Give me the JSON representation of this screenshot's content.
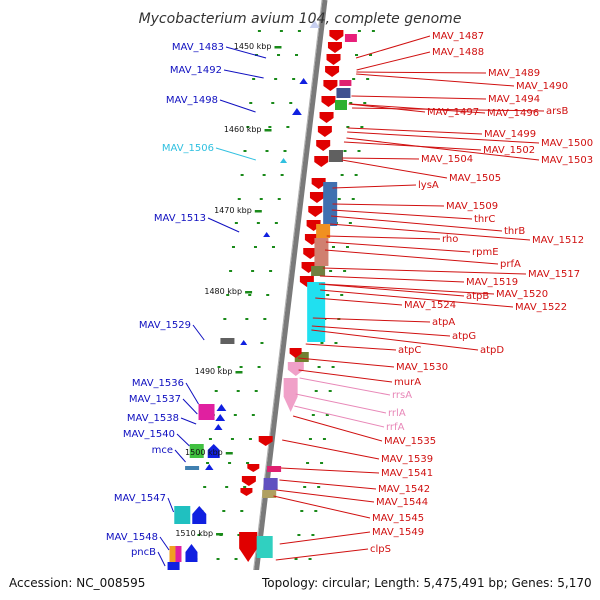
{
  "title": "Mycobacterium avium 104, complete genome",
  "footer": {
    "accession": "Accession: NC_008595",
    "summary": "Topology: circular; Length: 5,475,491 bp; Genes: 5,170"
  },
  "colors": {
    "plus_label": "#d01010",
    "minus_label": "#1010c0",
    "rna_label": "#e888b8",
    "cyan_label": "#30c0e0",
    "backbone": "#808080",
    "tick": "#1a8a1a"
  },
  "kbp_ticks": [
    "1450 kbp",
    "1460 kbp",
    "1470 kbp",
    "1480 kbp",
    "1490 kbp",
    "1500 kbp",
    "1510 kbp"
  ],
  "left_labels": [
    {
      "text": "MAV_1483",
      "kind": "minus"
    },
    {
      "text": "MAV_1492",
      "kind": "minus"
    },
    {
      "text": "MAV_1498",
      "kind": "minus"
    },
    {
      "text": "MAV_1506",
      "kind": "cyan"
    },
    {
      "text": "MAV_1513",
      "kind": "minus"
    },
    {
      "text": "MAV_1529",
      "kind": "minus"
    },
    {
      "text": "MAV_1536",
      "kind": "minus"
    },
    {
      "text": "MAV_1537",
      "kind": "minus"
    },
    {
      "text": "MAV_1538",
      "kind": "minus"
    },
    {
      "text": "MAV_1540",
      "kind": "minus"
    },
    {
      "text": "mce",
      "kind": "minus"
    },
    {
      "text": "MAV_1547",
      "kind": "minus"
    },
    {
      "text": "MAV_1548",
      "kind": "minus"
    },
    {
      "text": "pncB",
      "kind": "minus"
    }
  ],
  "right_labels": [
    {
      "text": "MAV_1487",
      "kind": "plus"
    },
    {
      "text": "MAV_1488",
      "kind": "plus"
    },
    {
      "text": "MAV_1489",
      "kind": "plus"
    },
    {
      "text": "MAV_1490",
      "kind": "plus"
    },
    {
      "text": "MAV_1494",
      "kind": "plus"
    },
    {
      "text": "MAV_1497",
      "kind": "plus"
    },
    {
      "text": "MAV_1496",
      "kind": "plus"
    },
    {
      "text": "arsB",
      "kind": "plus"
    },
    {
      "text": "MAV_1499",
      "kind": "plus"
    },
    {
      "text": "MAV_1500",
      "kind": "plus"
    },
    {
      "text": "MAV_1502",
      "kind": "plus"
    },
    {
      "text": "MAV_1503",
      "kind": "plus"
    },
    {
      "text": "MAV_1504",
      "kind": "plus"
    },
    {
      "text": "MAV_1505",
      "kind": "plus"
    },
    {
      "text": "lysA",
      "kind": "plus"
    },
    {
      "text": "MAV_1509",
      "kind": "plus"
    },
    {
      "text": "thrC",
      "kind": "plus"
    },
    {
      "text": "thrB",
      "kind": "plus"
    },
    {
      "text": "rho",
      "kind": "plus"
    },
    {
      "text": "MAV_1512",
      "kind": "plus"
    },
    {
      "text": "rpmE",
      "kind": "plus"
    },
    {
      "text": "prfA",
      "kind": "plus"
    },
    {
      "text": "MAV_1517",
      "kind": "plus"
    },
    {
      "text": "MAV_1519",
      "kind": "plus"
    },
    {
      "text": "atpB",
      "kind": "plus"
    },
    {
      "text": "MAV_1520",
      "kind": "plus"
    },
    {
      "text": "MAV_1524",
      "kind": "plus"
    },
    {
      "text": "MAV_1522",
      "kind": "plus"
    },
    {
      "text": "atpA",
      "kind": "plus"
    },
    {
      "text": "atpG",
      "kind": "plus"
    },
    {
      "text": "atpC",
      "kind": "plus"
    },
    {
      "text": "atpD",
      "kind": "plus"
    },
    {
      "text": "MAV_1530",
      "kind": "plus"
    },
    {
      "text": "murA",
      "kind": "plus"
    },
    {
      "text": "rrsA",
      "kind": "rna"
    },
    {
      "text": "rrlA",
      "kind": "rna"
    },
    {
      "text": "rrfA",
      "kind": "rna"
    },
    {
      "text": "MAV_1535",
      "kind": "plus"
    },
    {
      "text": "MAV_1539",
      "kind": "plus"
    },
    {
      "text": "MAV_1541",
      "kind": "plus"
    },
    {
      "text": "MAV_1542",
      "kind": "plus"
    },
    {
      "text": "MAV_1544",
      "kind": "plus"
    },
    {
      "text": "MAV_1545",
      "kind": "plus"
    },
    {
      "text": "MAV_1549",
      "kind": "plus"
    },
    {
      "text": "clpS",
      "kind": "plus"
    }
  ]
}
